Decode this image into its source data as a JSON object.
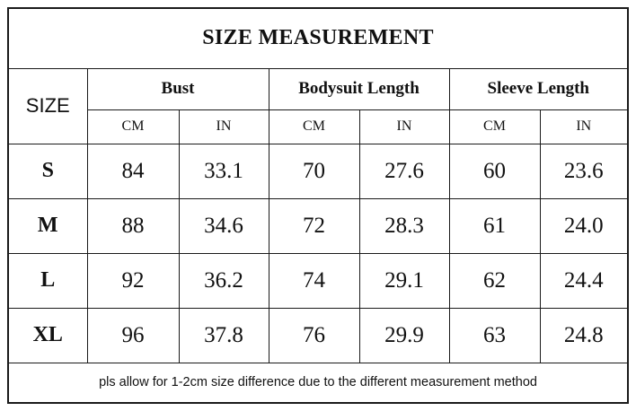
{
  "title": "SIZE MEASUREMENT",
  "size_header": "SIZE",
  "groups": [
    "Bust",
    "Bodysuit Length",
    "Sleeve Length"
  ],
  "units": [
    "CM",
    "IN",
    "CM",
    "IN",
    "CM",
    "IN"
  ],
  "rows": [
    {
      "size": "S",
      "values": [
        "84",
        "33.1",
        "70",
        "27.6",
        "60",
        "23.6"
      ]
    },
    {
      "size": "M",
      "values": [
        "88",
        "34.6",
        "72",
        "28.3",
        "61",
        "24.0"
      ]
    },
    {
      "size": "L",
      "values": [
        "92",
        "36.2",
        "74",
        "29.1",
        "62",
        "24.4"
      ]
    },
    {
      "size": "XL",
      "values": [
        "96",
        "37.8",
        "76",
        "29.9",
        "63",
        "24.8"
      ]
    }
  ],
  "note": "pls allow for 1-2cm size difference due to the different measurement method"
}
